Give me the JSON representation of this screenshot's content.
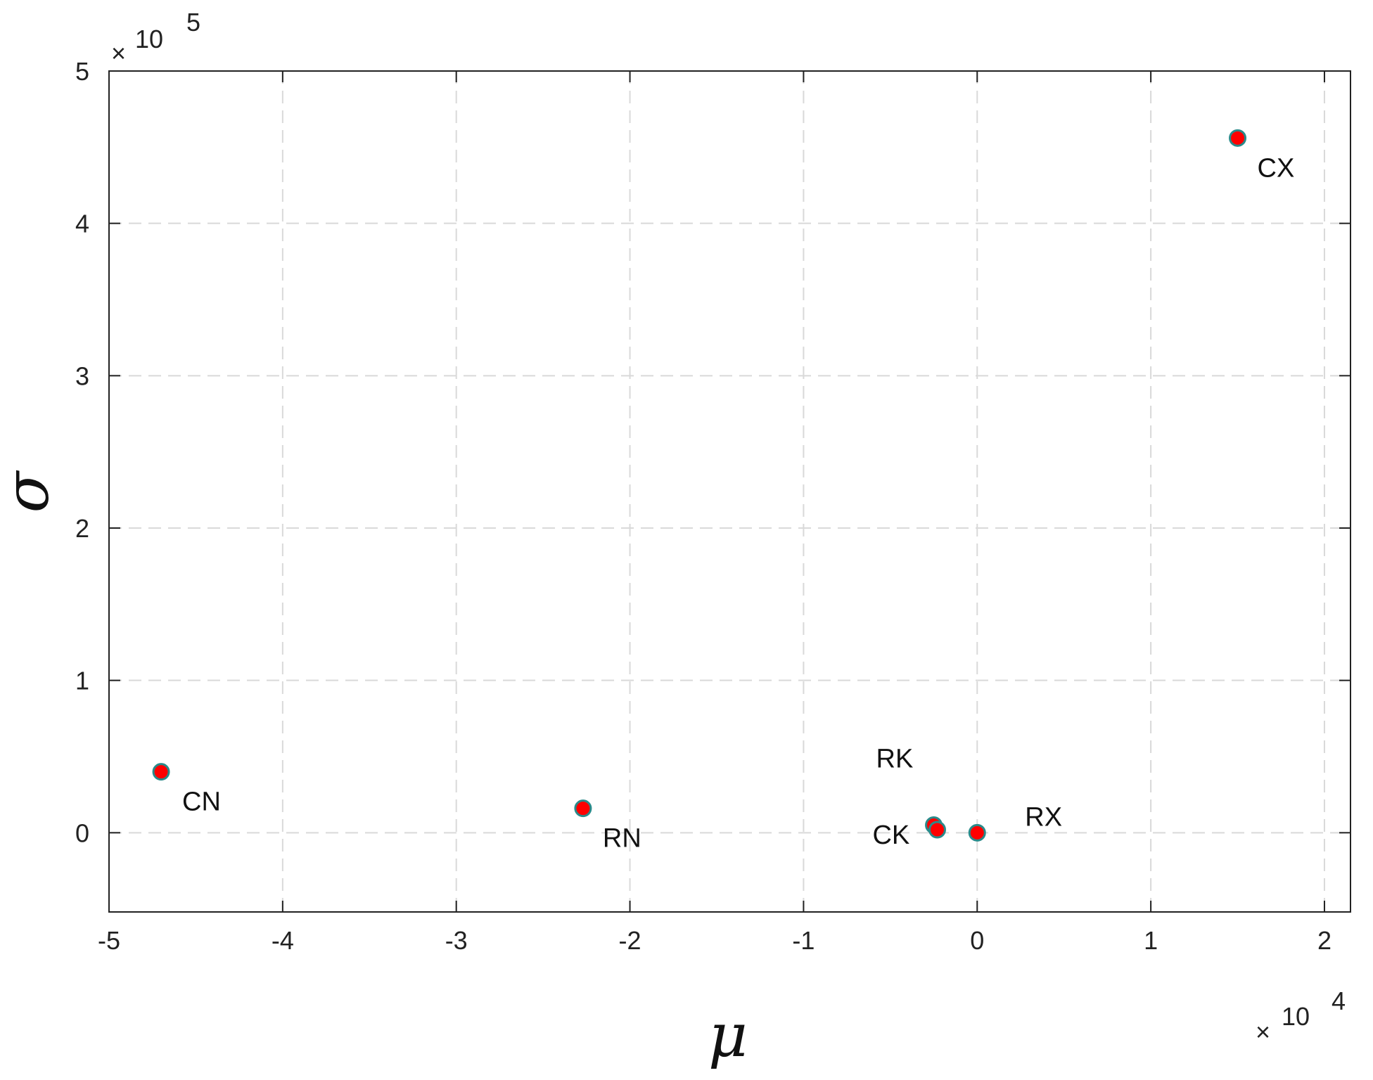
{
  "chart_data": {
    "type": "scatter",
    "xlabel": "μ",
    "ylabel": "σ",
    "x_exponent_label": "10",
    "x_exponent_power": "4",
    "y_exponent_label": "10",
    "y_exponent_power": "5",
    "multiplier_symbol": "×",
    "xlim": [
      -5,
      2.15
    ],
    "ylim": [
      -0.52,
      5
    ],
    "x_ticks": [
      -5,
      -4,
      -3,
      -2,
      -1,
      0,
      1,
      2
    ],
    "x_tick_labels": [
      "-5",
      "-4",
      "-3",
      "-2",
      "-1",
      "0",
      "1",
      "2"
    ],
    "y_ticks": [
      0,
      1,
      2,
      3,
      4,
      5
    ],
    "y_tick_labels": [
      "0",
      "1",
      "2",
      "3",
      "4",
      "5"
    ],
    "grid": true,
    "colors": {
      "marker_fill": "#ff0000",
      "marker_edge": "#2a8a8a",
      "grid": "#d9d9d9",
      "axis": "#222222"
    },
    "points": [
      {
        "label": "CN",
        "x": -4.7,
        "y": 0.4
      },
      {
        "label": "RN",
        "x": -2.27,
        "y": 0.16
      },
      {
        "label": "RK",
        "x": -0.25,
        "y": 0.05
      },
      {
        "label": "CK",
        "x": -0.23,
        "y": 0.02
      },
      {
        "label": "RX",
        "x": 0.0,
        "y": 0.0
      },
      {
        "label": "CX",
        "x": 1.5,
        "y": 4.56
      }
    ]
  }
}
